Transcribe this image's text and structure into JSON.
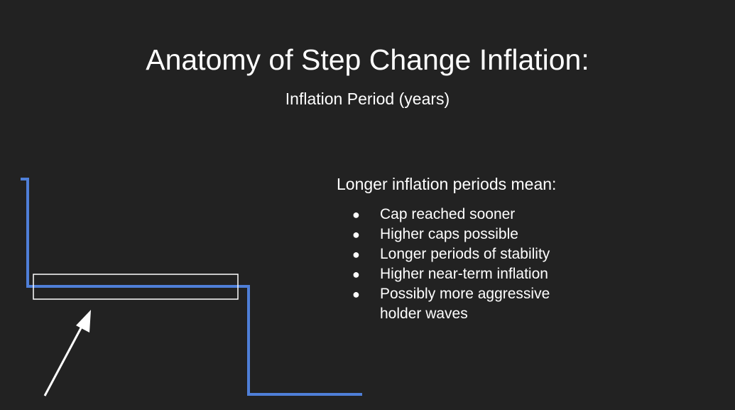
{
  "slide": {
    "title": "Anatomy of Step Change Inflation:",
    "subtitle": "Inflation Period (years)"
  },
  "colors": {
    "background": "#222222",
    "step_line": "#4f7fd8",
    "highlight_box": "#ffffff",
    "arrow": "#ffffff",
    "text": "#ffffff"
  },
  "content": {
    "heading": "Longer inflation periods mean:",
    "bullets": [
      "Cap reached sooner",
      "Higher caps possible",
      "Longer periods of stability",
      "Higher near-term inflation",
      "Possibly more aggressive holder waves"
    ]
  }
}
